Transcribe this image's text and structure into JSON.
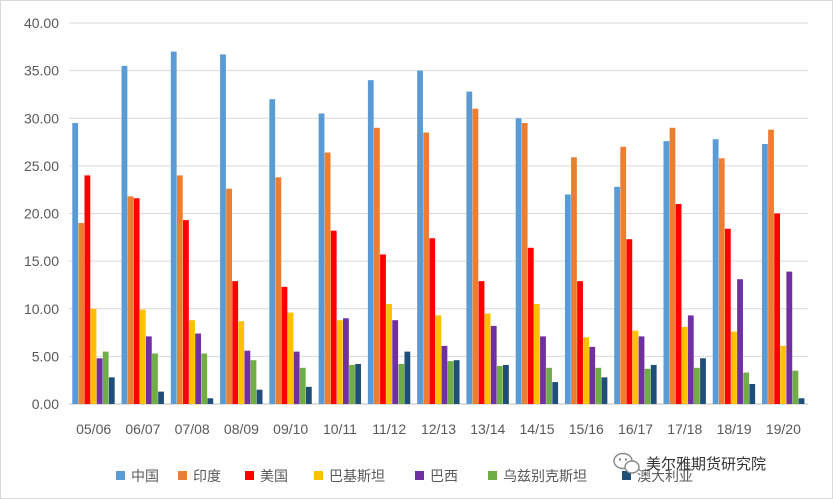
{
  "chart_data": {
    "type": "bar",
    "title": "",
    "xlabel": "",
    "ylabel": "",
    "ylim": [
      0,
      40
    ],
    "yticks": [
      "0.00",
      "5.00",
      "10.00",
      "15.00",
      "20.00",
      "25.00",
      "30.00",
      "35.00",
      "40.00"
    ],
    "grid": true,
    "legend_position": "bottom",
    "categories": [
      "05/06",
      "06/07",
      "07/08",
      "08/09",
      "09/10",
      "10/11",
      "11/12",
      "12/13",
      "13/14",
      "14/15",
      "15/16",
      "16/17",
      "17/18",
      "18/19",
      "19/20"
    ],
    "series": [
      {
        "name": "中国",
        "color": "#5B9BD5",
        "values": [
          29.5,
          35.5,
          37.0,
          36.7,
          32.0,
          30.5,
          34.0,
          35.0,
          32.8,
          30.0,
          22.0,
          22.8,
          27.6,
          27.8,
          27.3
        ]
      },
      {
        "name": "印度",
        "color": "#ED7D31",
        "values": [
          19.0,
          21.8,
          24.0,
          22.6,
          23.8,
          26.4,
          29.0,
          28.5,
          31.0,
          29.5,
          25.9,
          27.0,
          29.0,
          25.8,
          28.8
        ]
      },
      {
        "name": "美国",
        "color": "#FF0000",
        "values": [
          24.0,
          21.6,
          19.3,
          12.9,
          12.3,
          18.2,
          15.7,
          17.4,
          12.9,
          16.4,
          12.9,
          17.3,
          21.0,
          18.4,
          20.0
        ]
      },
      {
        "name": "巴基斯坦",
        "color": "#FFC000",
        "values": [
          10.0,
          9.9,
          8.8,
          8.7,
          9.6,
          8.8,
          10.5,
          9.3,
          9.5,
          10.5,
          7.0,
          7.7,
          8.1,
          7.6,
          6.1
        ]
      },
      {
        "name": "巴西",
        "color": "#7030A0",
        "values": [
          4.8,
          7.1,
          7.4,
          5.6,
          5.5,
          9.0,
          8.8,
          6.1,
          8.2,
          7.1,
          6.0,
          7.1,
          9.3,
          13.1,
          13.9
        ]
      },
      {
        "name": "乌兹别克斯坦",
        "color": "#70AD47",
        "values": [
          5.5,
          5.3,
          5.3,
          4.6,
          3.8,
          4.1,
          4.2,
          4.5,
          4.0,
          3.8,
          3.8,
          3.7,
          3.8,
          3.3,
          3.5
        ]
      },
      {
        "name": "澳大利亚",
        "color": "#1F4E79",
        "values": [
          2.8,
          1.3,
          0.6,
          1.5,
          1.8,
          4.2,
          5.5,
          4.6,
          4.1,
          2.3,
          2.8,
          4.1,
          4.8,
          2.1,
          0.6
        ]
      }
    ]
  },
  "watermark": {
    "text": "美尔雅期货研究院",
    "icon": "wechat-icon"
  }
}
